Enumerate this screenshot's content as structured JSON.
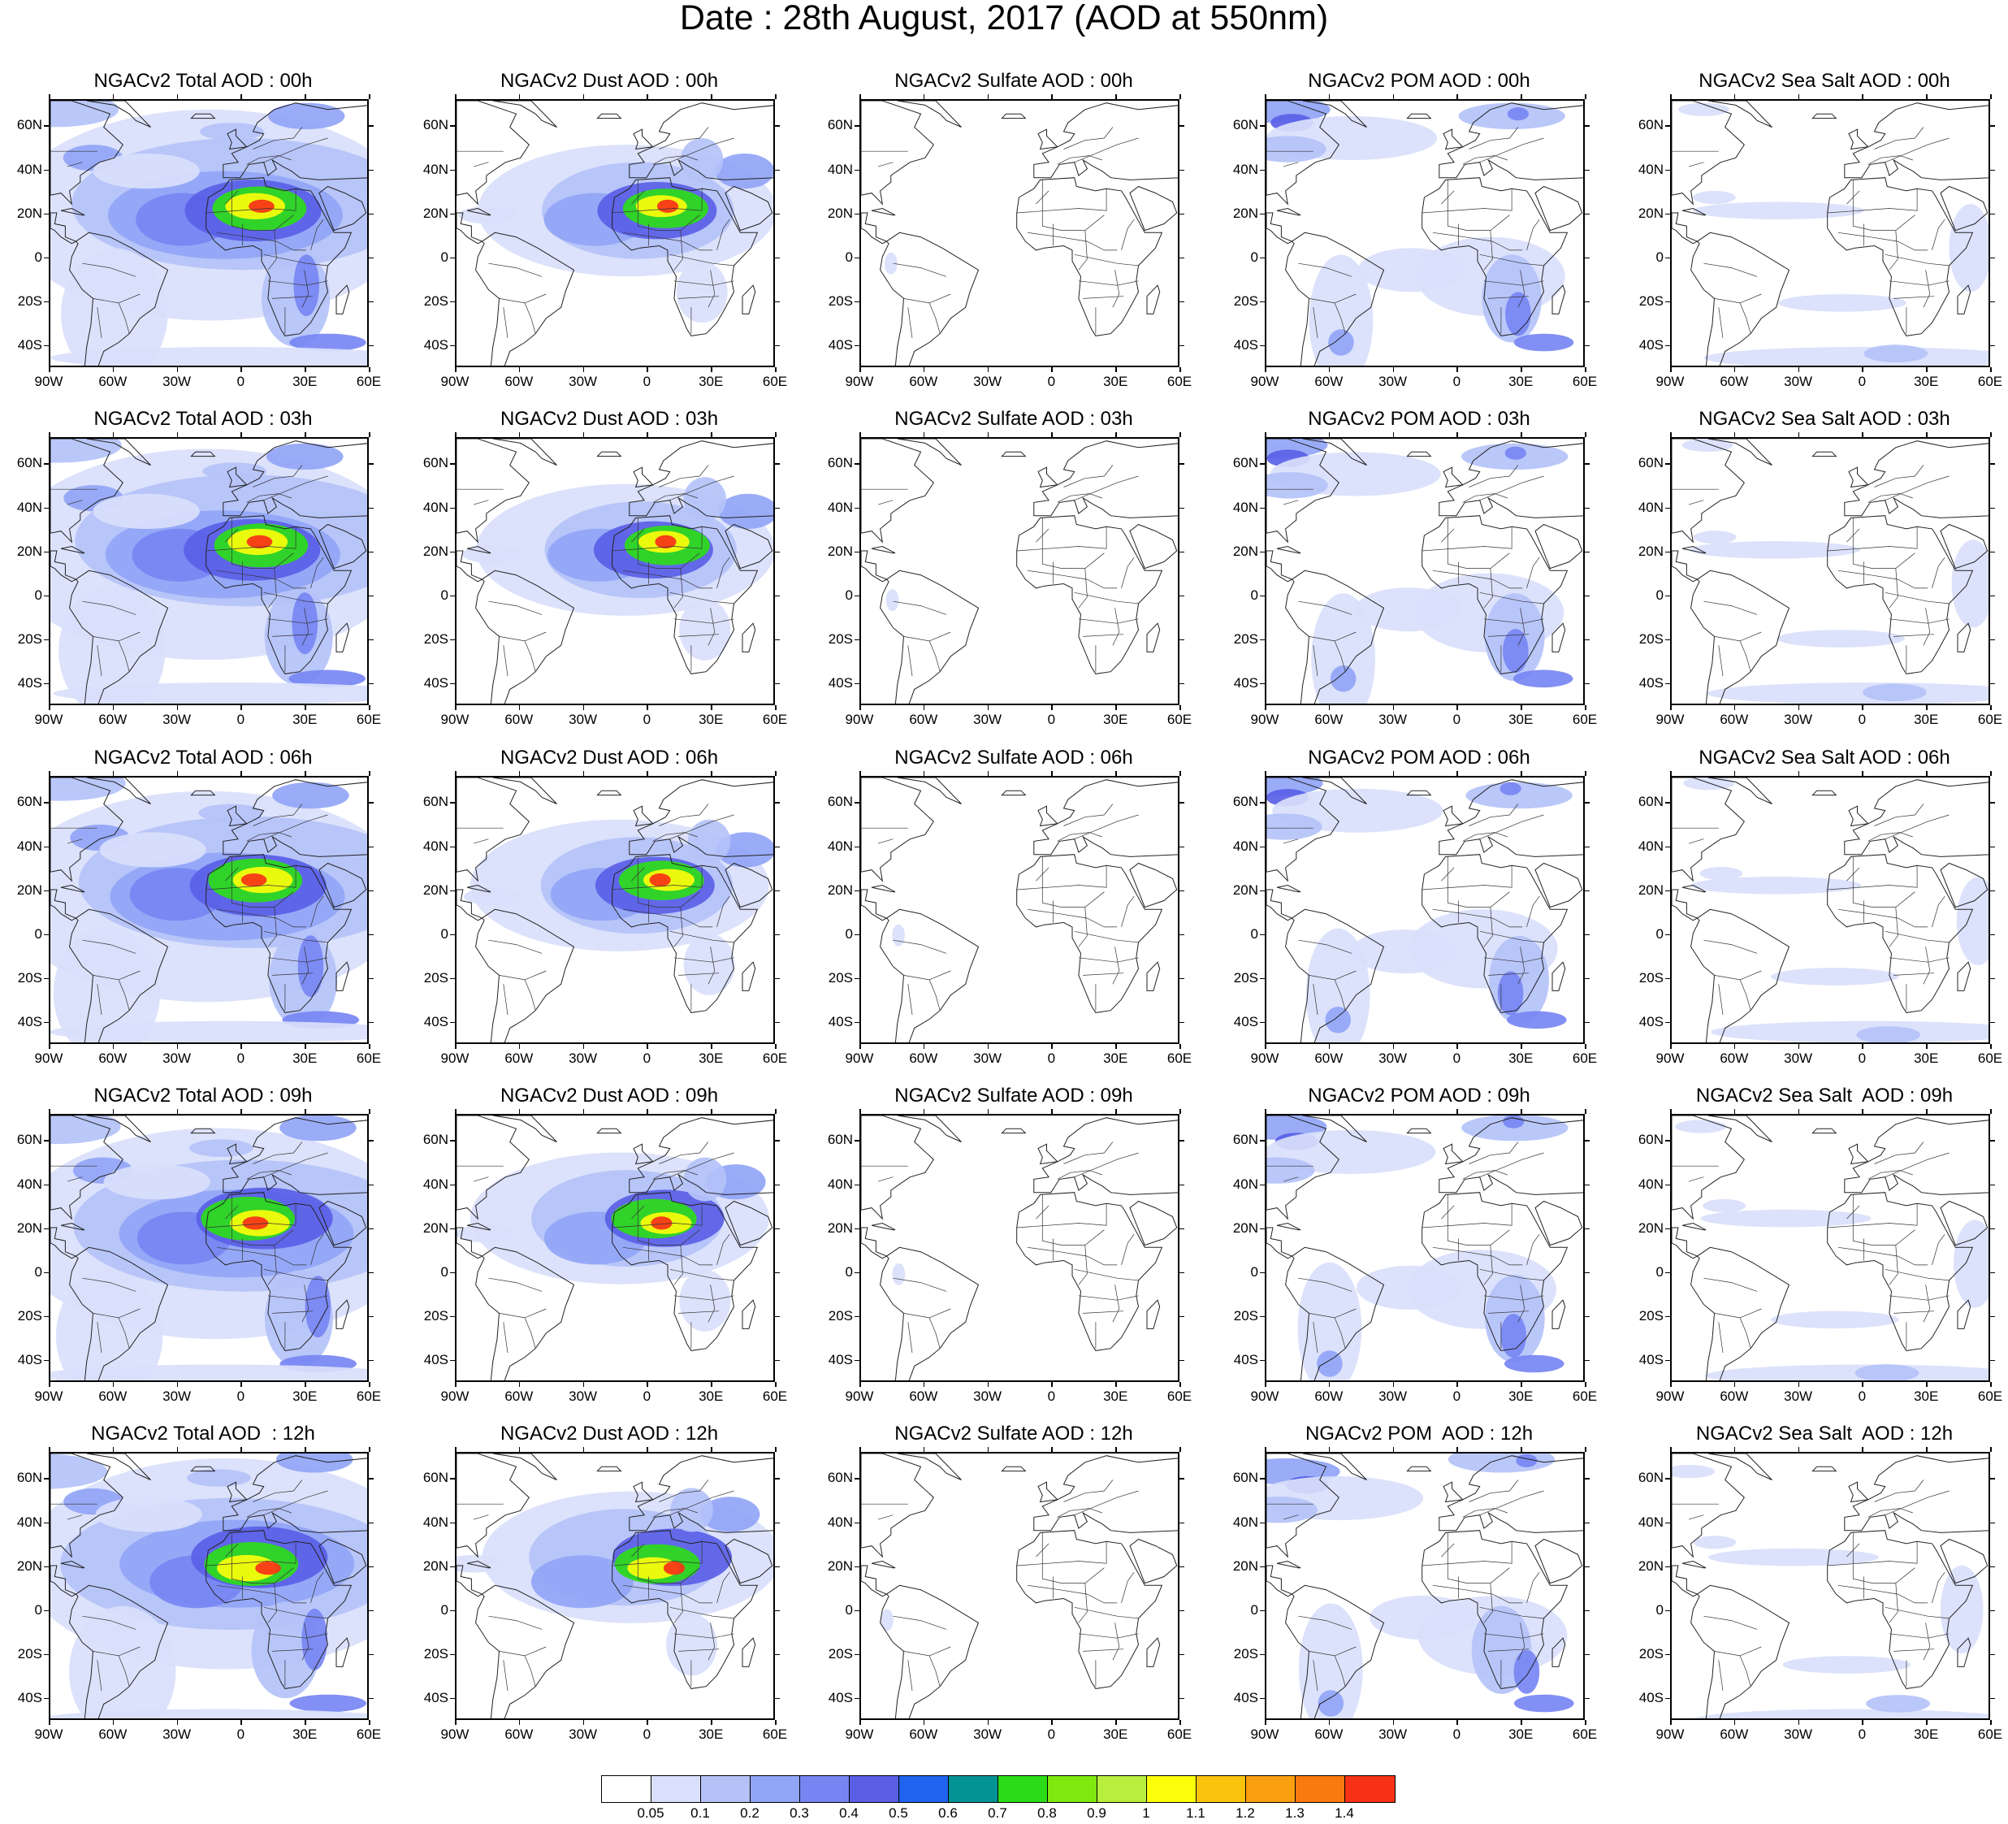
{
  "title": "Date : 28th August, 2017 (AOD at 550nm)",
  "rows": [
    [
      "NGACv2 Total AOD : 00h",
      "NGACv2 Dust AOD : 00h",
      "NGACv2 Sulfate AOD : 00h",
      "NGACv2 POM AOD : 00h",
      "NGACv2 Sea Salt AOD : 00h"
    ],
    [
      "NGACv2 Total AOD : 03h",
      "NGACv2 Dust AOD : 03h",
      "NGACv2 Sulfate AOD : 03h",
      "NGACv2 POM AOD : 03h",
      "NGACv2 Sea Salt AOD : 03h"
    ],
    [
      "NGACv2 Total AOD : 06h",
      "NGACv2 Dust AOD : 06h",
      "NGACv2 Sulfate AOD : 06h",
      "NGACv2 POM AOD : 06h",
      "NGACv2 Sea Salt AOD : 06h"
    ],
    [
      "NGACv2 Total AOD : 09h",
      "NGACv2 Dust AOD : 09h",
      "NGACv2 Sulfate AOD : 09h",
      "NGACv2 POM AOD : 09h",
      "NGACv2 Sea Salt  AOD : 09h"
    ],
    [
      "NGACv2 Total AOD  : 12h",
      "NGACv2 Dust AOD : 12h",
      "NGACv2 Sulfate AOD : 12h",
      "NGACv2 POM  AOD : 12h",
      "NGACv2 Sea Salt  AOD : 12h"
    ]
  ],
  "species": [
    "total",
    "dust",
    "sulfate",
    "pom",
    "seasalt"
  ],
  "lat_labels": [
    "60N",
    "40N",
    "20N",
    "0",
    "20S",
    "40S"
  ],
  "lon_labels": [
    "90W",
    "60W",
    "30W",
    "0",
    "30E",
    "60E"
  ],
  "colorbar": {
    "colors": [
      "#ffffff",
      "#d9e0fb",
      "#b4c2f8",
      "#91a5f6",
      "#7785f3",
      "#5a5fe6",
      "#1f63ee",
      "#039394",
      "#2ddc18",
      "#7fe80f",
      "#b8ee3e",
      "#fbfd0b",
      "#fac30e",
      "#fa9f10",
      "#f97a0f",
      "#f73217"
    ],
    "labels": [
      "0.05",
      "0.1",
      "0.2",
      "0.3",
      "0.4",
      "0.5",
      "0.6",
      "0.7",
      "0.8",
      "0.9",
      "1",
      "1.1",
      "1.2",
      "1.3",
      "1.4"
    ]
  }
}
